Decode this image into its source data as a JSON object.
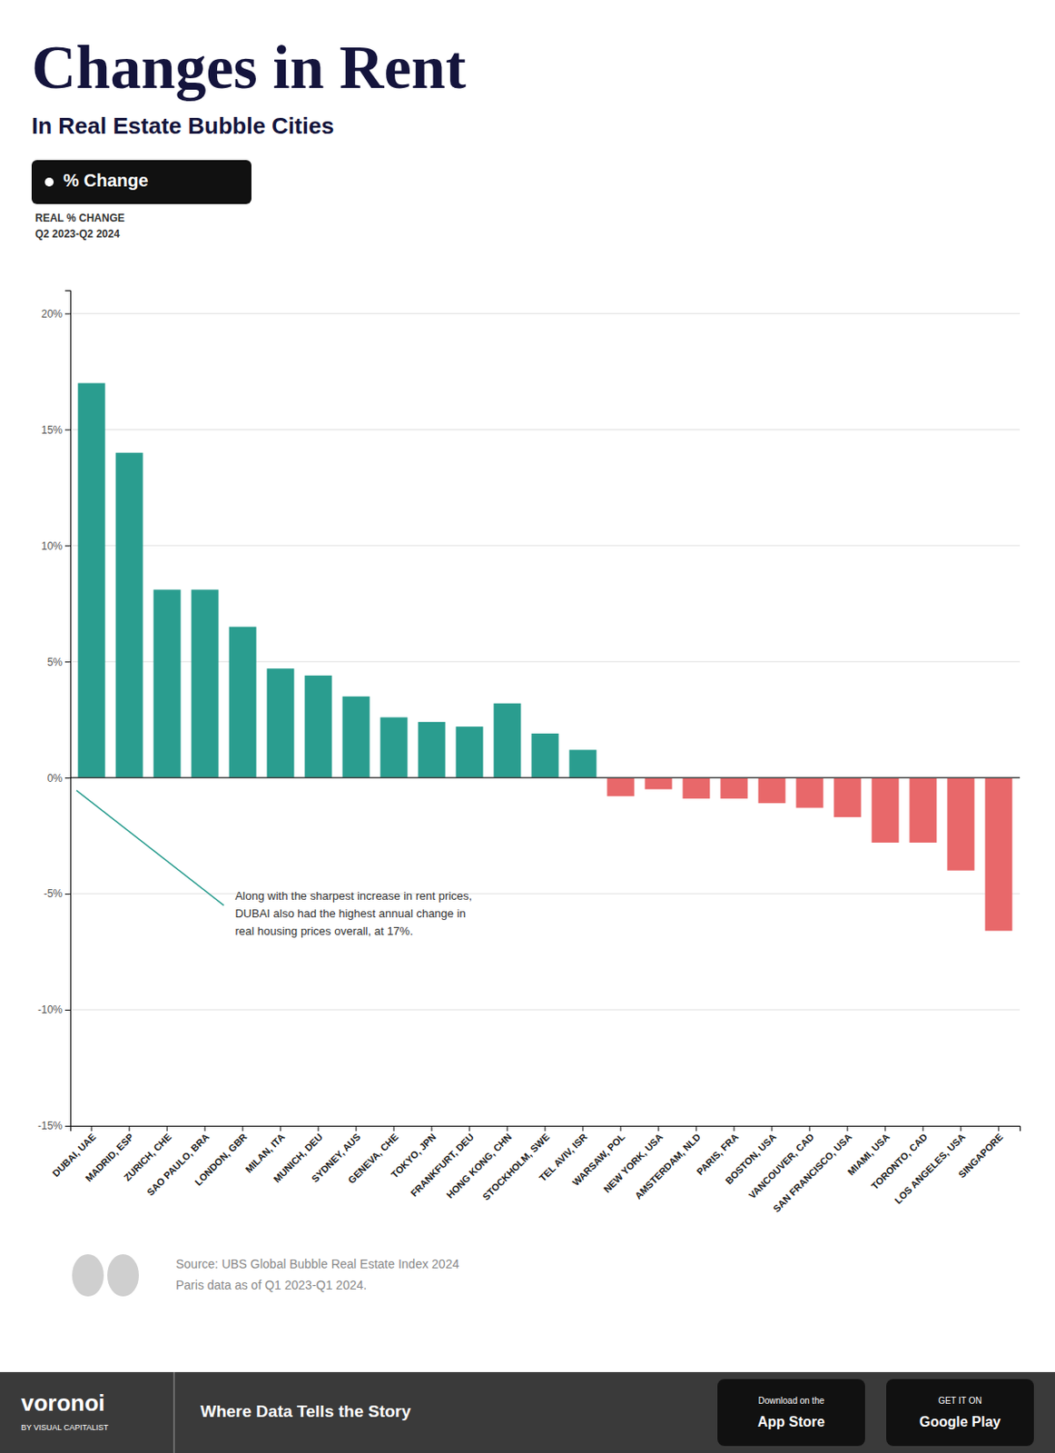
{
  "chart_data": {
    "type": "bar",
    "title": "Changes in Rent",
    "subtitle": "In Real Estate Bubble Cities",
    "categories": [
      "DUBAI, UAE",
      "MADRID, ESP",
      "ZURICH, CHE",
      "SAO PAULO, BRA",
      "LONDON, GBR",
      "MILAN, ITA",
      "MUNICH, DEU",
      "SYDNEY, AUS",
      "GENEVA, CHE",
      "TOKYO, JPN",
      "FRANKFURT, DEU",
      "HONG KONG, CHN",
      "STOCKHOLM, SWE",
      "TEL AVIV, ISR",
      "WARSAW, POL",
      "NEW YORK, USA",
      "AMSTERDAM, NLD",
      "PARIS, FRA",
      "BOSTON, USA",
      "VANCOUVER, CAD",
      "SAN FRANCISCO, USA",
      "MIAMI, USA",
      "TORONTO, CAD",
      "LOS ANGELES, USA",
      "SINGAPORE"
    ],
    "series": [
      {
        "name": "% Change",
        "values": [
          17.0,
          14.0,
          8.1,
          8.1,
          6.5,
          4.7,
          4.4,
          3.5,
          2.6,
          2.4,
          2.2,
          3.2,
          1.9,
          1.2,
          -0.8,
          -0.5,
          -0.9,
          -0.9,
          -1.1,
          -1.3,
          -1.7,
          -2.8,
          -2.8,
          -4.0,
          -6.6
        ],
        "colors": [
          "#2a9d8f",
          "#2a9d8f",
          "#2a9d8f",
          "#2a9d8f",
          "#2a9d8f",
          "#2a9d8f",
          "#2a9d8f",
          "#2a9d8f",
          "#2a9d8f",
          "#2a9d8f",
          "#2a9d8f",
          "#2a9d8f",
          "#2a9d8f",
          "#2a9d8f",
          "#e8686a",
          "#e8686a",
          "#e8686a",
          "#e8686a",
          "#e8686a",
          "#e8686a",
          "#e8686a",
          "#e8686a",
          "#e8686a",
          "#e8686a",
          "#e8686a"
        ]
      }
    ],
    "ylim": [
      -15,
      21
    ],
    "yticks": [
      {
        "value": -15,
        "label": "-15%"
      },
      {
        "value": -10,
        "label": "-10%"
      },
      {
        "value": -5,
        "label": "-5%"
      },
      {
        "value": 0,
        "label": "0%"
      },
      {
        "value": 5,
        "label": "5%"
      },
      {
        "value": 10,
        "label": "10%"
      },
      {
        "value": 15,
        "label": "15%"
      },
      {
        "value": 20,
        "label": "20%"
      }
    ],
    "grid": true,
    "annotations": [
      "Along with the sharpest increase in rent prices,",
      "DUBAI also had the highest annual change in",
      "real housing prices overall, at 17%.",
      "REAL % CHANGE",
      "Q2 2023-Q2 2024",
      "Source: UBS Global Bubble Real Estate Index 2024",
      "Paris data as of Q1 2023-Q1 2024.",
      "voronoi",
      "BY VISUAL CAPITALIST",
      "Where Data Tells the Story",
      "Download on the",
      "App Store",
      "GET IT ON",
      "Google Play"
    ]
  }
}
